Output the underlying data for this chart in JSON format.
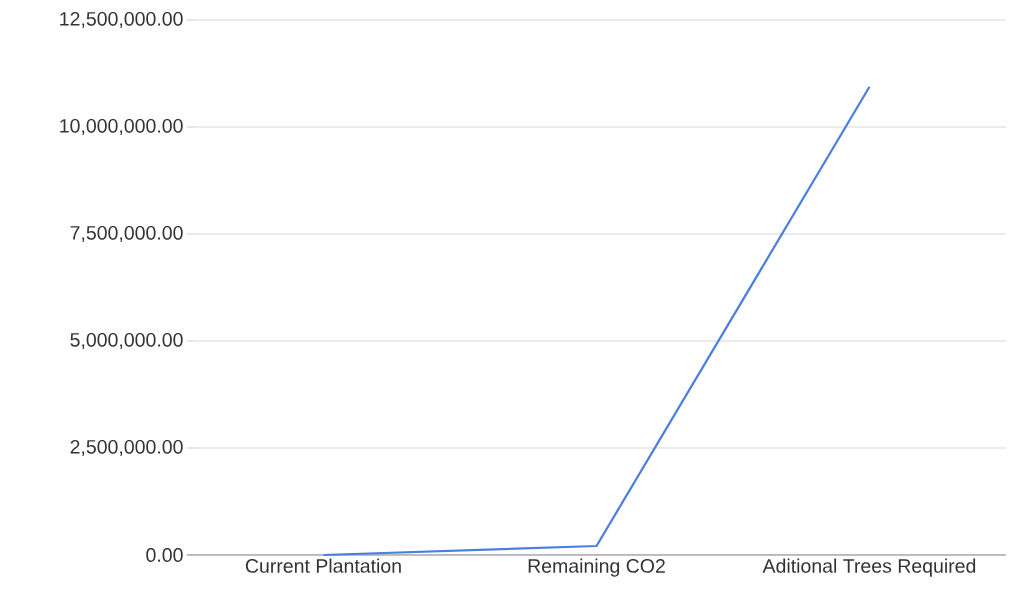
{
  "chart_data": {
    "type": "line",
    "categories": [
      "Current Plantation",
      "Remaining CO2",
      "Aditional Trees Required"
    ],
    "series": [
      {
        "color": "#4a7fe0",
        "values": [
          0,
          210000,
          10940000
        ]
      }
    ],
    "ylim": [
      0,
      12500000
    ],
    "yticks": [
      {
        "value": 0,
        "label": "0.00"
      },
      {
        "value": 2500000,
        "label": "2,500,000.00"
      },
      {
        "value": 5000000,
        "label": "5,000,000.00"
      },
      {
        "value": 7500000,
        "label": "7,500,000.00"
      },
      {
        "value": 10000000,
        "label": "10,000,000.00"
      },
      {
        "value": 12500000,
        "label": "12,500,000.00"
      }
    ],
    "grid": "y",
    "marker": "none",
    "line_style": "solid"
  }
}
